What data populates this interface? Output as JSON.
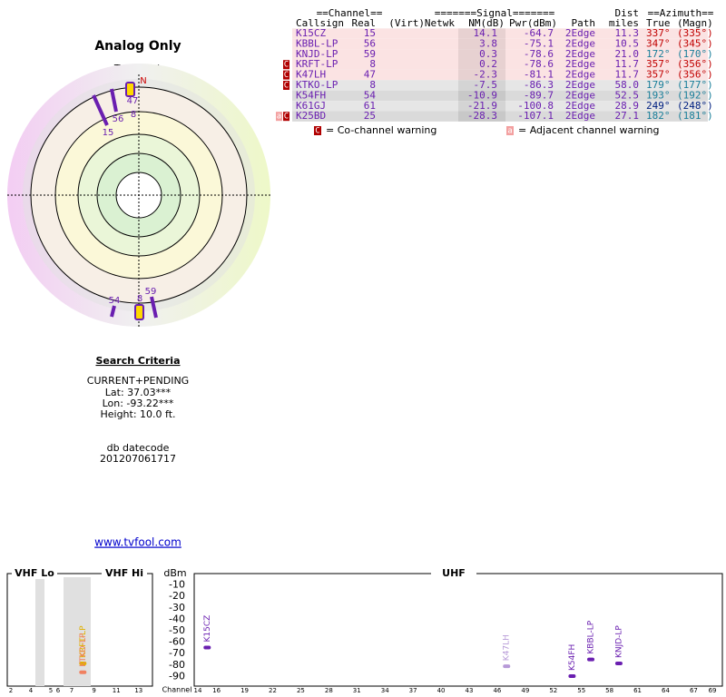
{
  "polar": {
    "title": "Analog Only",
    "north_label": "TrueNorth",
    "north": "N",
    "labels": [
      "47",
      "8",
      "56",
      "15",
      "54",
      "8",
      "59"
    ]
  },
  "table": {
    "group_headers": [
      "==Channel==",
      "=======Signal=======",
      "Dist",
      "==Azimuth=="
    ],
    "headers": [
      "Callsign",
      "Real",
      "(Virt)",
      "Netwk",
      "NM(dB)",
      "Pwr(dBm)",
      "Path",
      "miles",
      "True",
      "(Magn)"
    ],
    "rows": [
      {
        "callsign": "K15CZ",
        "real": "15",
        "nm": "14.1",
        "pwr": "-64.7",
        "path": "2Edge",
        "dist": "11.3",
        "true": "337°",
        "magn": "(335°)",
        "azimuth_color": "#c00000",
        "warnings": []
      },
      {
        "callsign": "KBBL-LP",
        "real": "56",
        "nm": "3.8",
        "pwr": "-75.1",
        "path": "2Edge",
        "dist": "10.5",
        "true": "347°",
        "magn": "(345°)",
        "azimuth_color": "#c00000",
        "warnings": []
      },
      {
        "callsign": "KNJD-LP",
        "real": "59",
        "nm": "0.3",
        "pwr": "-78.6",
        "path": "2Edge",
        "dist": "21.0",
        "true": "172°",
        "magn": "(170°)",
        "azimuth_color": "#1a7f9a",
        "warnings": []
      },
      {
        "callsign": "KRFT-LP",
        "real": "8",
        "nm": "0.2",
        "pwr": "-78.6",
        "path": "2Edge",
        "dist": "11.7",
        "true": "357°",
        "magn": "(356°)",
        "azimuth_color": "#c00000",
        "warnings": [
          "C"
        ]
      },
      {
        "callsign": "K47LH",
        "real": "47",
        "nm": "-2.3",
        "pwr": "-81.1",
        "path": "2Edge",
        "dist": "11.7",
        "true": "357°",
        "magn": "(356°)",
        "azimuth_color": "#c00000",
        "warnings": [
          "C"
        ]
      },
      {
        "callsign": "KTKO-LP",
        "real": "8",
        "nm": "-7.5",
        "pwr": "-86.3",
        "path": "2Edge",
        "dist": "58.0",
        "true": "179°",
        "magn": "(177°)",
        "azimuth_color": "#1a7f9a",
        "warnings": [
          "C"
        ]
      },
      {
        "callsign": "K54FH",
        "real": "54",
        "nm": "-10.9",
        "pwr": "-89.7",
        "path": "2Edge",
        "dist": "52.5",
        "true": "193°",
        "magn": "(192°)",
        "azimuth_color": "#1a7f9a",
        "warnings": []
      },
      {
        "callsign": "K61GJ",
        "real": "61",
        "nm": "-21.9",
        "pwr": "-100.8",
        "path": "2Edge",
        "dist": "28.9",
        "true": "249°",
        "magn": "(248°)",
        "azimuth_color": "#002080",
        "warnings": []
      },
      {
        "callsign": "K25BD",
        "real": "25",
        "nm": "-28.3",
        "pwr": "-107.1",
        "path": "2Edge",
        "dist": "27.1",
        "true": "182°",
        "magn": "(181°)",
        "azimuth_color": "#1a7f9a",
        "warnings": [
          "a",
          "C"
        ]
      }
    ],
    "legend": [
      {
        "mark": "C",
        "text": "= Co-channel warning"
      },
      {
        "mark": "a",
        "text": "= Adjacent channel warning"
      }
    ]
  },
  "criteria": {
    "title": "Search Criteria",
    "lines": [
      "CURRENT+PENDING",
      "Lat: 37.03***",
      "Lon: -93.22***",
      "Height: 10.0 ft."
    ],
    "datecode_label": "db datecode",
    "datecode": "201207061717"
  },
  "link": "www.tvfool.com",
  "spectrum": {
    "bands": [
      "VHF Lo",
      "VHF Hi",
      "UHF"
    ],
    "unit": "dBm",
    "x_label": "Channel",
    "ylim": [
      0,
      -100
    ],
    "yticks": [
      -10,
      -20,
      -30,
      -40,
      -50,
      -60,
      -70,
      -80,
      -90
    ],
    "vhf_lo_ticks": [
      2,
      4,
      5,
      6
    ],
    "vhf_hi_ticks": [
      7,
      9,
      11,
      13
    ],
    "uhf_ticks": [
      14,
      16,
      19,
      22,
      25,
      28,
      31,
      34,
      37,
      40,
      43,
      46,
      49,
      52,
      55,
      58,
      61,
      64,
      67,
      69
    ],
    "stations": [
      {
        "name": "K15CZ",
        "channel": 15,
        "dbm": -64.7,
        "color": "#6a1fb0"
      },
      {
        "name": "KBBL-LP",
        "channel": 56,
        "dbm": -75.1,
        "color": "#6a1fb0"
      },
      {
        "name": "KNJD-LP",
        "channel": 59,
        "dbm": -78.6,
        "color": "#6a1fb0"
      },
      {
        "name": "K47LH",
        "channel": 47,
        "dbm": -81.1,
        "color": "#b79ad8"
      },
      {
        "name": "K54FH",
        "channel": 54,
        "dbm": -89.7,
        "color": "#6a1fb0"
      },
      {
        "name": "KRFT-LP",
        "channel": 8,
        "dbm": -78.6,
        "color": "#e0b000"
      },
      {
        "name": "KTKO-LP",
        "channel": 8,
        "dbm": -86.3,
        "color": "#f08060"
      }
    ]
  }
}
